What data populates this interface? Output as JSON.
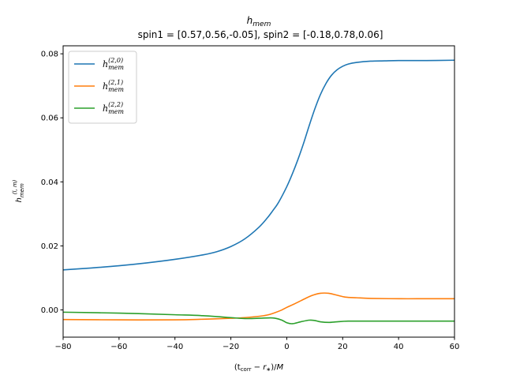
{
  "chart_data": {
    "type": "line",
    "title_main": "h",
    "title_sub": "mem",
    "subtitle": "spin1 = [0.57,0.56,-0.05], spin2 = [-0.18,0.78,0.06]",
    "xlabel": "(t_corr − r_*)/M",
    "ylabel": "h_mem^(l,m)",
    "xlim": [
      -80,
      60
    ],
    "ylim": [
      -0.0085,
      0.0825
    ],
    "xticks": [
      -80,
      -60,
      -40,
      -20,
      0,
      20,
      40,
      60
    ],
    "xtick_labels": [
      "−80",
      "−60",
      "−40",
      "−20",
      "0",
      "20",
      "40",
      "60"
    ],
    "yticks": [
      0.0,
      0.02,
      0.04,
      0.06,
      0.08
    ],
    "ytick_labels": [
      "0.00",
      "0.02",
      "0.04",
      "0.06",
      "0.08"
    ],
    "legend_position": "top-left",
    "grid": false,
    "series": [
      {
        "name": "h_mem^(2,0)",
        "label_base": "h",
        "label_sup": "(2,0)",
        "label_sub": "mem",
        "color": "#1f77b4",
        "x": [
          -80,
          -70,
          -60,
          -50,
          -40,
          -30,
          -25,
          -20,
          -15,
          -10,
          -7,
          -5,
          -3,
          0,
          2,
          4,
          6,
          8,
          10,
          12,
          14,
          16,
          18,
          20,
          22,
          25,
          30,
          35,
          40,
          50,
          60
        ],
        "y": [
          0.0125,
          0.0131,
          0.0138,
          0.0147,
          0.0158,
          0.0172,
          0.0182,
          0.0198,
          0.0222,
          0.0258,
          0.0287,
          0.031,
          0.0335,
          0.0385,
          0.0425,
          0.047,
          0.052,
          0.0575,
          0.0627,
          0.0672,
          0.0707,
          0.0733,
          0.075,
          0.0761,
          0.0768,
          0.0773,
          0.0777,
          0.0778,
          0.0779,
          0.0779,
          0.078
        ]
      },
      {
        "name": "h_mem^(2,1)",
        "label_base": "h",
        "label_sup": "(2,1)",
        "label_sub": "mem",
        "color": "#ff7f0e",
        "x": [
          -80,
          -60,
          -40,
          -30,
          -20,
          -15,
          -10,
          -7,
          -5,
          -2,
          0,
          3,
          6,
          9,
          12,
          15,
          18,
          21,
          25,
          30,
          40,
          50,
          60
        ],
        "y": [
          -0.003,
          -0.0031,
          -0.0031,
          -0.0029,
          -0.0026,
          -0.0024,
          -0.002,
          -0.0016,
          -0.0011,
          -0.0001,
          0.0008,
          0.002,
          0.0033,
          0.0045,
          0.0052,
          0.0052,
          0.0046,
          0.004,
          0.0038,
          0.0036,
          0.0035,
          0.0035,
          0.0035
        ]
      },
      {
        "name": "h_mem^(2,2)",
        "label_base": "h",
        "label_sup": "(2,2)",
        "label_sub": "mem",
        "color": "#2ca02c",
        "x": [
          -80,
          -60,
          -40,
          -30,
          -20,
          -15,
          -10,
          -5,
          -2,
          0,
          2,
          5,
          8,
          10,
          12,
          15,
          18,
          22,
          30,
          40,
          50,
          60
        ],
        "y": [
          -0.0007,
          -0.001,
          -0.0015,
          -0.0018,
          -0.0024,
          -0.0027,
          -0.0026,
          -0.0025,
          -0.0031,
          -0.004,
          -0.0043,
          -0.0037,
          -0.0032,
          -0.0033,
          -0.0037,
          -0.0039,
          -0.0037,
          -0.0035,
          -0.0035,
          -0.0035,
          -0.0035,
          -0.0035
        ]
      }
    ]
  }
}
